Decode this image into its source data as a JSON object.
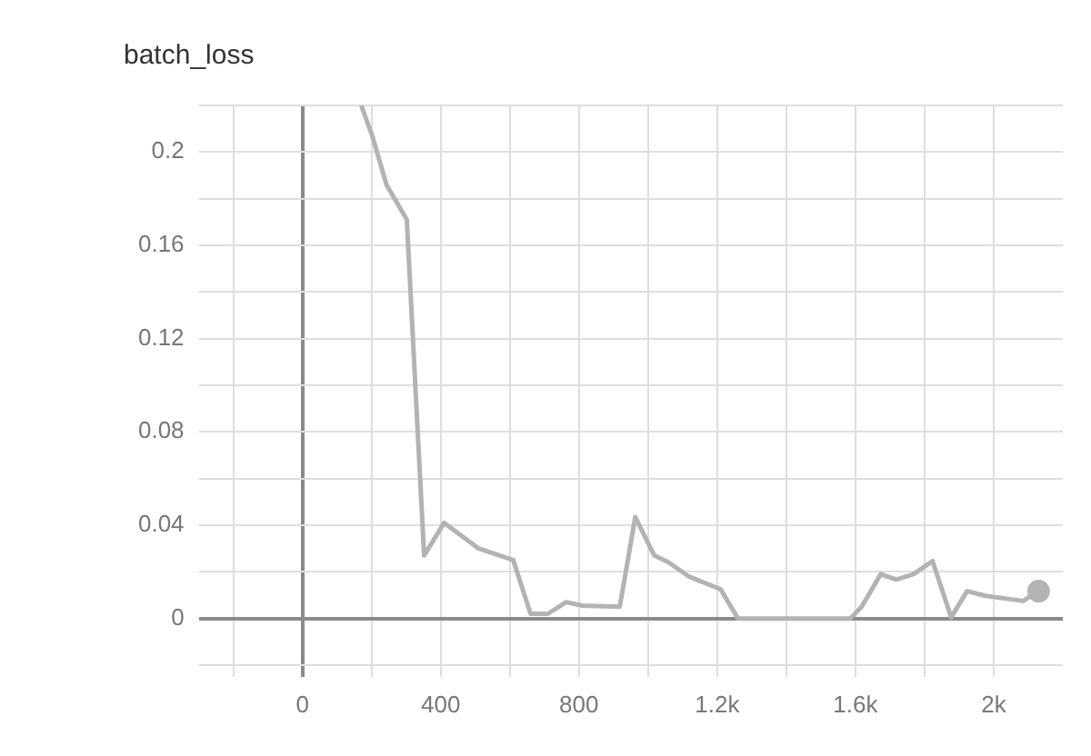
{
  "chart_data": {
    "type": "line",
    "title": "batch_loss",
    "x": [
      170,
      202,
      243,
      302,
      352,
      410,
      510,
      610,
      660,
      710,
      763,
      810,
      918,
      963,
      1018,
      1060,
      1118,
      1210,
      1260,
      1585,
      1618,
      1673,
      1718,
      1768,
      1823,
      1877,
      1923,
      1977,
      2085,
      2130
    ],
    "series": [
      {
        "color": "#b3b3b3",
        "values": [
          0.22,
          0.207,
          0.186,
          0.171,
          0.027,
          0.041,
          0.03,
          0.025,
          0.002,
          0.002,
          0.007,
          0.0055,
          0.005,
          0.0435,
          0.027,
          0.024,
          0.018,
          0.0125,
          0,
          0,
          0.005,
          0.019,
          0.0167,
          0.019,
          0.0246,
          0.0005,
          0.0117,
          0.0097,
          0.0075,
          0.0117
        ]
      }
    ],
    "xlim": [
      -300,
      2200
    ],
    "xticks": [
      {
        "value": -200,
        "label": null
      },
      0,
      {
        "value": 200,
        "label": null
      },
      400,
      {
        "value": 600,
        "label": null
      },
      800,
      {
        "value": 1000,
        "label": null
      },
      {
        "value": 1200,
        "label": "1.2k"
      },
      {
        "value": 1400,
        "label": null
      },
      {
        "value": 1600,
        "label": "1.6k"
      },
      {
        "value": 1800,
        "label": null
      },
      {
        "value": 2000,
        "label": "2k"
      }
    ],
    "ylim": [
      -0.025,
      0.22
    ],
    "yticks": [
      {
        "value": -0.02,
        "label": null
      },
      0,
      {
        "value": 0.02,
        "label": null
      },
      0.04,
      {
        "value": 0.06,
        "label": null
      },
      0.08,
      {
        "value": 0.1,
        "label": null
      },
      0.12,
      {
        "value": 0.14,
        "label": null
      },
      0.16,
      {
        "value": 0.18,
        "label": null
      },
      0.2,
      {
        "value": 0.22,
        "label": null
      }
    ],
    "grid": true,
    "legend": false,
    "line_style": "solid"
  }
}
